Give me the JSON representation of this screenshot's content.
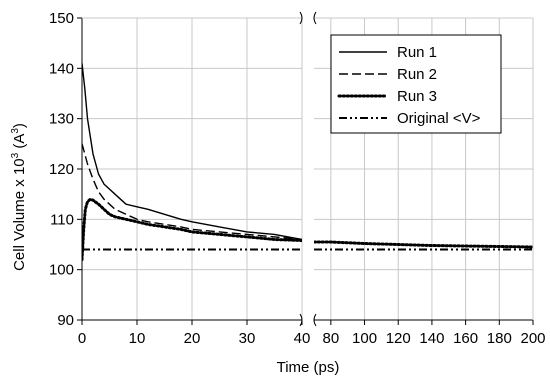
{
  "chart_data": {
    "type": "line",
    "title": "",
    "xlabel": "Time (ps)",
    "ylabel_main": "Cell Volume x 10",
    "ylabel_sup": "3",
    "ylabel_after": " (A",
    "ylabel_sup2": "3",
    "ylabel_end": ")",
    "ylim": [
      90,
      150
    ],
    "y_ticks": [
      90,
      100,
      110,
      120,
      130,
      140,
      150
    ],
    "y_tick_labels": [
      "90",
      "100",
      "110",
      "120",
      "130",
      "140",
      "150"
    ],
    "x_broken_axis": true,
    "x_segments": [
      {
        "range": [
          0,
          40
        ],
        "ticks": [
          0,
          10,
          20,
          30,
          40
        ],
        "tick_labels": [
          "0",
          "10",
          "20",
          "30",
          "40"
        ]
      },
      {
        "range": [
          70,
          200
        ],
        "ticks": [
          80,
          100,
          120,
          140,
          160,
          180,
          200
        ],
        "tick_labels": [
          "80",
          "100",
          "120",
          "140",
          "160",
          "180",
          "200"
        ]
      }
    ],
    "grid": true,
    "legend_position": "top-right",
    "series": [
      {
        "name": "Run 1",
        "style": "solid",
        "color": "#000000",
        "x": [
          0,
          0.5,
          1,
          2,
          3,
          4,
          5,
          6,
          8,
          10,
          12,
          15,
          18,
          20,
          25,
          30,
          35,
          40,
          80,
          100,
          120,
          140,
          160,
          180,
          200
        ],
        "y": [
          141,
          136,
          130,
          123,
          119,
          117,
          116,
          115,
          113,
          112.5,
          112,
          111,
          110,
          109.5,
          108.5,
          107.5,
          107,
          106,
          105.5,
          105.2,
          105,
          104.8,
          104.7,
          104.6,
          104.5
        ]
      },
      {
        "name": "Run 2",
        "style": "dashed",
        "color": "#000000",
        "x": [
          0,
          0.5,
          1,
          2,
          3,
          4,
          5,
          6,
          8,
          10,
          12,
          15,
          18,
          20,
          25,
          30,
          35,
          40,
          80,
          100,
          120,
          140,
          160,
          180,
          200
        ],
        "y": [
          125,
          123,
          121,
          118,
          115.5,
          114,
          113,
          112,
          111,
          110,
          109.5,
          109,
          108.5,
          108,
          107.5,
          107,
          106.5,
          106,
          105.5,
          105.2,
          105,
          104.8,
          104.7,
          104.6,
          104.5
        ]
      },
      {
        "name": "Run 3",
        "style": "dotted",
        "color": "#000000",
        "x": [
          0,
          0.3,
          0.6,
          1,
          1.5,
          2,
          3,
          4,
          5,
          6,
          8,
          10,
          12,
          15,
          18,
          20,
          25,
          30,
          35,
          40,
          80,
          100,
          120,
          140,
          160,
          180,
          200
        ],
        "y": [
          102,
          108,
          112,
          113.5,
          114,
          113.8,
          113,
          112,
          111,
          110.5,
          110,
          109.5,
          109,
          108.5,
          108,
          107.5,
          107,
          106.5,
          106,
          105.8,
          105.5,
          105.2,
          105,
          104.8,
          104.7,
          104.6,
          104.5
        ]
      },
      {
        "name": "Original <V>",
        "style": "dashdot",
        "color": "#000000",
        "x": [
          0,
          40,
          70,
          200
        ],
        "y": [
          104,
          104,
          104,
          104
        ]
      }
    ]
  }
}
